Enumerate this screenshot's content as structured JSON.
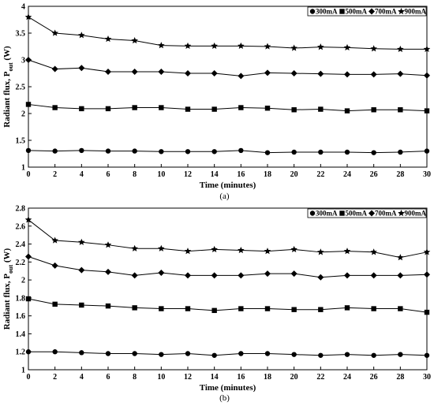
{
  "chart_data": [
    {
      "type": "line",
      "caption": "(a)",
      "xlabel": "Time (minutes)",
      "ylabel_main": "Radiant flux, P",
      "ylabel_sub": "out",
      "ylabel_unit": " (W)",
      "xlim": [
        0,
        30
      ],
      "ylim": [
        1,
        4
      ],
      "xticks": [
        0,
        2,
        4,
        6,
        8,
        10,
        12,
        14,
        16,
        18,
        20,
        22,
        24,
        26,
        28,
        30
      ],
      "yticks": [
        1,
        1.5,
        2,
        2.5,
        3,
        3.5,
        4
      ],
      "ytick_labels": [
        "1",
        "1.5",
        "2",
        "2.5",
        "3",
        "3.5",
        "4"
      ],
      "grid": false,
      "legend": "top-right",
      "x": [
        0,
        2,
        4,
        6,
        8,
        10,
        12,
        14,
        16,
        18,
        20,
        22,
        24,
        26,
        28,
        30
      ],
      "series": [
        {
          "name": "300mA",
          "marker": "circle",
          "values": [
            1.31,
            1.3,
            1.31,
            1.3,
            1.3,
            1.29,
            1.29,
            1.29,
            1.31,
            1.27,
            1.28,
            1.28,
            1.28,
            1.27,
            1.28,
            1.3
          ]
        },
        {
          "name": "500mA",
          "marker": "square",
          "values": [
            2.17,
            2.11,
            2.09,
            2.09,
            2.11,
            2.11,
            2.08,
            2.08,
            2.11,
            2.1,
            2.07,
            2.08,
            2.05,
            2.07,
            2.07,
            2.05
          ]
        },
        {
          "name": "700mA",
          "marker": "diamond",
          "values": [
            3.0,
            2.83,
            2.85,
            2.78,
            2.78,
            2.78,
            2.75,
            2.75,
            2.7,
            2.76,
            2.75,
            2.74,
            2.73,
            2.73,
            2.74,
            2.71
          ]
        },
        {
          "name": "900mA",
          "marker": "star",
          "values": [
            3.8,
            3.5,
            3.46,
            3.39,
            3.36,
            3.27,
            3.26,
            3.26,
            3.26,
            3.25,
            3.22,
            3.24,
            3.23,
            3.21,
            3.2,
            3.2
          ]
        }
      ]
    },
    {
      "type": "line",
      "caption": "(b)",
      "xlabel": "Time (minutes)",
      "ylabel_main": "Radiant flux, P",
      "ylabel_sub": "out",
      "ylabel_unit": " (W)",
      "xlim": [
        0,
        30
      ],
      "ylim": [
        1,
        2.8
      ],
      "xticks": [
        0,
        2,
        4,
        6,
        8,
        10,
        12,
        14,
        16,
        18,
        20,
        22,
        24,
        26,
        28,
        30
      ],
      "yticks": [
        1,
        1.2,
        1.4,
        1.6,
        1.8,
        2,
        2.2,
        2.4,
        2.6,
        2.8
      ],
      "ytick_labels": [
        "1",
        "1.2",
        "1.4",
        "1.6",
        "1.8",
        "2",
        "2.2",
        "2.4",
        "2.6",
        "2.8"
      ],
      "grid": false,
      "legend": "top-right",
      "x": [
        0,
        2,
        4,
        6,
        8,
        10,
        12,
        14,
        16,
        18,
        20,
        22,
        24,
        26,
        28,
        30
      ],
      "series": [
        {
          "name": "300mA",
          "marker": "circle",
          "values": [
            1.2,
            1.2,
            1.19,
            1.18,
            1.18,
            1.17,
            1.18,
            1.16,
            1.18,
            1.18,
            1.17,
            1.16,
            1.17,
            1.16,
            1.17,
            1.16
          ]
        },
        {
          "name": "500mA",
          "marker": "square",
          "values": [
            1.79,
            1.73,
            1.72,
            1.71,
            1.69,
            1.68,
            1.68,
            1.66,
            1.68,
            1.68,
            1.67,
            1.67,
            1.69,
            1.68,
            1.68,
            1.64
          ]
        },
        {
          "name": "700mA",
          "marker": "diamond",
          "values": [
            2.26,
            2.16,
            2.11,
            2.09,
            2.05,
            2.08,
            2.05,
            2.05,
            2.05,
            2.07,
            2.07,
            2.03,
            2.05,
            2.05,
            2.05,
            2.06
          ]
        },
        {
          "name": "900mA",
          "marker": "star",
          "values": [
            2.67,
            2.44,
            2.42,
            2.39,
            2.35,
            2.35,
            2.32,
            2.34,
            2.33,
            2.32,
            2.34,
            2.31,
            2.32,
            2.31,
            2.25,
            2.31
          ]
        }
      ]
    }
  ]
}
